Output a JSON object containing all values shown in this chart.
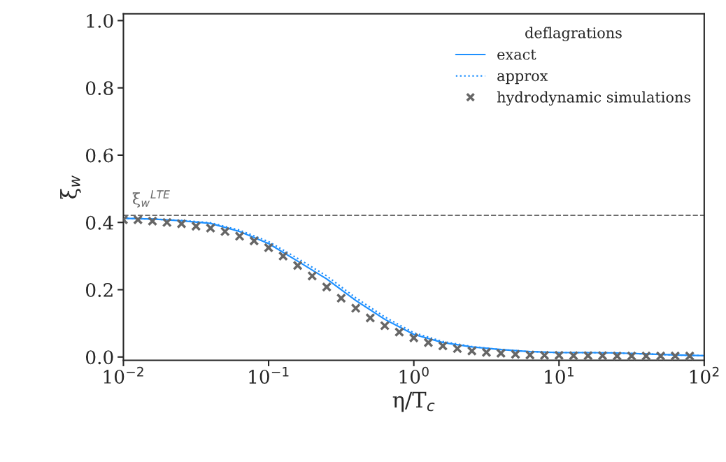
{
  "chart_data": {
    "type": "line",
    "xlabel": "η/T$_{c}$",
    "ylabel": "ξ$_{w}$",
    "legend_title": "deflagrations",
    "log": "x",
    "grid": false,
    "legend": "top right",
    "xlim": [
      0.01,
      100
    ],
    "ylim": [
      -0.01,
      1.02
    ],
    "xticks": [
      {
        "value": 0.01,
        "label": "10$^{−2}$"
      },
      {
        "value": 0.1,
        "label": "10$^{−1}$"
      },
      {
        "value": 1,
        "label": "10$^{0}$"
      },
      {
        "value": 10,
        "label": "10$^{1}$"
      },
      {
        "value": 100,
        "label": "10$^{2}$"
      }
    ],
    "yticks": [
      {
        "value": 0,
        "label": "0.0"
      },
      0.2,
      0.4,
      0.6,
      0.8,
      {
        "value": 1,
        "label": "1.0"
      }
    ],
    "ref_lines": [
      {
        "axis": "y",
        "value": 0.421,
        "label": "ξ$_{w}$$^{LTE}$",
        "color": "#666666",
        "line_style": "dashed"
      }
    ],
    "series": [
      {
        "name": "exact",
        "color": "#1e90ff",
        "line_style": "solid",
        "marker": "none",
        "x": [
          0.01,
          0.01585,
          0.02512,
          0.03981,
          0.0631,
          0.1,
          0.1585,
          0.2512,
          0.3981,
          0.631,
          1,
          1.585,
          2.512,
          3.981,
          6.31,
          10,
          15.85,
          25.12,
          39.81,
          63.1,
          100
        ],
        "values": [
          0.412,
          0.41,
          0.405,
          0.397,
          0.373,
          0.337,
          0.285,
          0.232,
          0.168,
          0.112,
          0.067,
          0.043,
          0.03,
          0.022,
          0.016,
          0.013,
          0.013,
          0.012,
          0.009,
          0.006,
          0.004
        ]
      },
      {
        "name": "approx",
        "color": "#1e90ff",
        "line_style": "dotted",
        "marker": "none",
        "x": [
          0.01,
          0.01585,
          0.02512,
          0.03981,
          0.0631,
          0.1,
          0.1585,
          0.2512,
          0.3981,
          0.631,
          1,
          1.585,
          2.512,
          3.981,
          6.31,
          10,
          15.85,
          25.12,
          39.81,
          63.1,
          100
        ],
        "values": [
          0.412,
          0.41,
          0.406,
          0.399,
          0.377,
          0.343,
          0.293,
          0.241,
          0.176,
          0.119,
          0.072,
          0.046,
          0.031,
          0.022,
          0.016,
          0.013,
          0.013,
          0.012,
          0.009,
          0.006,
          0.004
        ]
      },
      {
        "name": "hydrodynamic simulations",
        "type": "scatter",
        "color": "#666666",
        "marker": "cross",
        "x": [
          0.01,
          0.01259,
          0.01585,
          0.01995,
          0.02512,
          0.03162,
          0.03981,
          0.05012,
          0.0631,
          0.07943,
          0.1,
          0.1259,
          0.1585,
          0.1995,
          0.2512,
          0.3162,
          0.3981,
          0.5012,
          0.631,
          0.7943,
          1,
          1.259,
          1.585,
          1.995,
          2.512,
          3.162,
          3.981,
          5.012,
          6.31,
          7.943,
          10,
          12.59,
          15.85,
          19.95,
          25.12,
          31.62,
          39.81,
          50.12,
          63.1,
          79.43
        ],
        "values": [
          0.408,
          0.408,
          0.404,
          0.4,
          0.396,
          0.389,
          0.383,
          0.373,
          0.359,
          0.345,
          0.325,
          0.3,
          0.272,
          0.241,
          0.208,
          0.175,
          0.145,
          0.116,
          0.093,
          0.074,
          0.057,
          0.043,
          0.033,
          0.025,
          0.018,
          0.014,
          0.011,
          0.008,
          0.006,
          0.005,
          0.005,
          0.004,
          0.004,
          0.004,
          0.003,
          0.003,
          0.003,
          0.003,
          0.003,
          0.003
        ]
      }
    ]
  }
}
